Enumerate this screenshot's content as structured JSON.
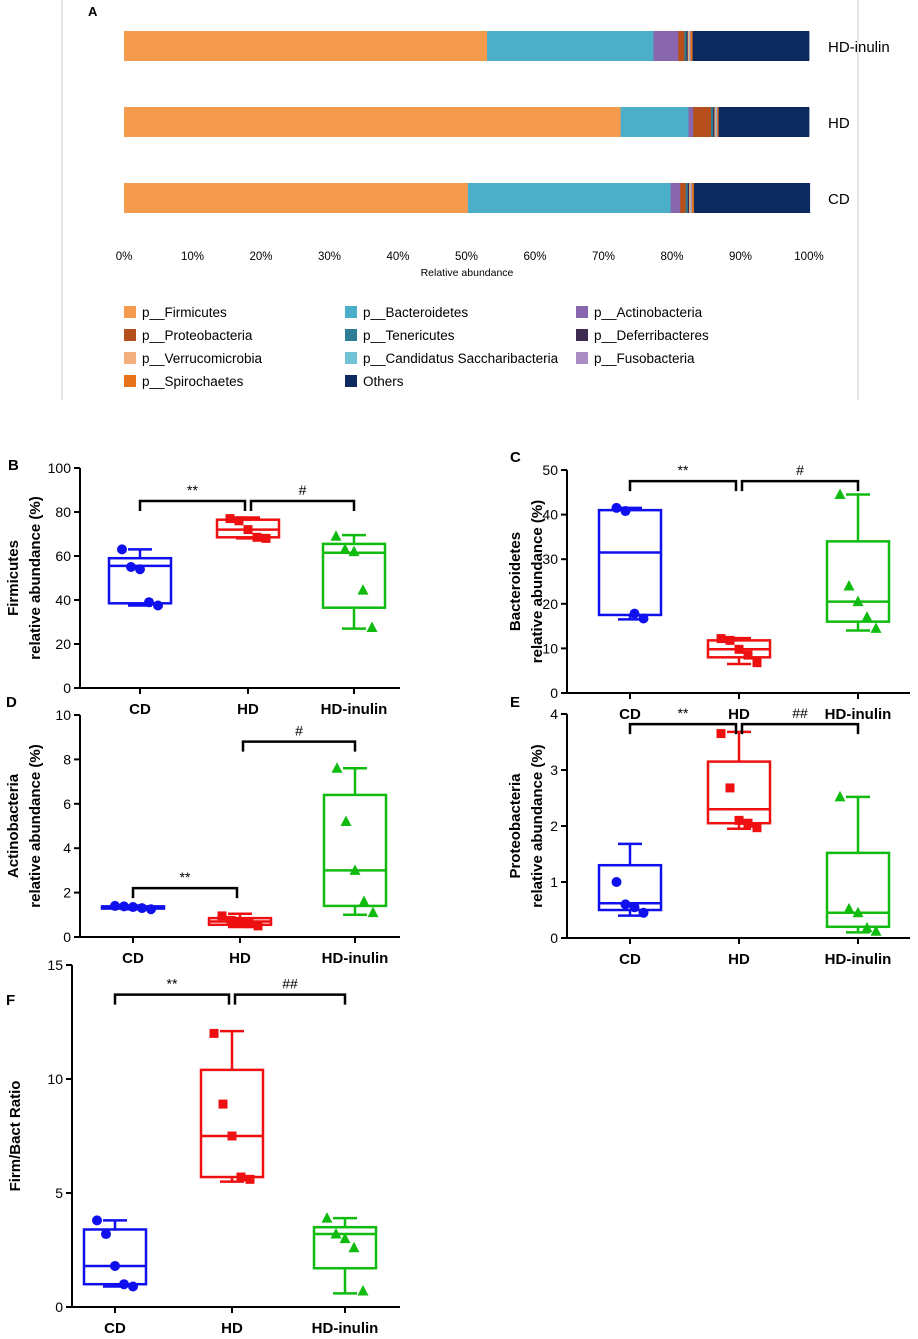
{
  "colors": {
    "CD": "#1010ee",
    "HD": "#ee1010",
    "HD-inulin": "#10bb10",
    "panel_border": "#cccccc"
  },
  "chart_data": [
    {
      "panel": "A",
      "type": "bar",
      "orientation": "horizontal-stacked",
      "xlabel": "Relative abundance",
      "xlim": [
        0,
        100
      ],
      "xticks": [
        "0%",
        "10%",
        "20%",
        "30%",
        "40%",
        "50%",
        "60%",
        "70%",
        "80%",
        "90%",
        "100%"
      ],
      "categories": [
        "HD-inulin",
        "HD",
        "CD"
      ],
      "series": [
        {
          "name": "p__Firmicutes",
          "color": "#f59b4d",
          "values": [
            53.0,
            72.5,
            50.2
          ]
        },
        {
          "name": "p__Bacteroidetes",
          "color": "#4bafc9",
          "values": [
            24.3,
            9.9,
            29.6
          ]
        },
        {
          "name": "p__Actinobacteria",
          "color": "#8766ad",
          "values": [
            3.6,
            0.7,
            1.4
          ]
        },
        {
          "name": "p__Proteobacteria",
          "color": "#b5501c",
          "values": [
            0.9,
            2.6,
            0.8
          ]
        },
        {
          "name": "p__Tenericutes",
          "color": "#2c7e94",
          "values": [
            0.3,
            0.3,
            0.3
          ]
        },
        {
          "name": "p__Deferribacteres",
          "color": "#3d2b54",
          "values": [
            0.2,
            0.2,
            0.2
          ]
        },
        {
          "name": "p__Verrucomicrobia",
          "color": "#f3b07e",
          "values": [
            0.2,
            0.2,
            0.2
          ]
        },
        {
          "name": "p__Candidatus Saccharibacteria",
          "color": "#71c4d6",
          "values": [
            0.1,
            0.1,
            0.1
          ]
        },
        {
          "name": "p__Fusobacteria",
          "color": "#a98dc3",
          "values": [
            0.1,
            0.1,
            0.1
          ]
        },
        {
          "name": "p__Spirochaetes",
          "color": "#e6731c",
          "values": [
            0.3,
            0.2,
            0.3
          ]
        },
        {
          "name": "Others",
          "color": "#0c2a5e",
          "values": [
            17.0,
            13.2,
            16.9
          ]
        }
      ]
    },
    {
      "panel": "B",
      "type": "box",
      "ylabel_line1": "Firmicutes",
      "ylabel_line2": "relative abundance (%)",
      "ylim": [
        0,
        100
      ],
      "yticks": [
        "0",
        "20",
        "40",
        "60",
        "80",
        "100"
      ],
      "categories": [
        "CD",
        "HD",
        "HD-inulin"
      ],
      "groups": [
        {
          "name": "CD",
          "marker": "circle",
          "whisker": [
            37.5,
            63.0
          ],
          "box": [
            38.5,
            59.0
          ],
          "median": 55.5,
          "points": [
            63.0,
            55.0,
            54.0,
            39.0,
            37.5
          ]
        },
        {
          "name": "HD",
          "marker": "square",
          "whisker": [
            68.0,
            77.5
          ],
          "box": [
            68.5,
            76.5
          ],
          "median": 72.0,
          "points": [
            77.0,
            76.0,
            72.0,
            68.5,
            68.0
          ]
        },
        {
          "name": "HD-inulin",
          "marker": "triangle",
          "whisker": [
            27.0,
            69.5
          ],
          "box": [
            36.5,
            65.5
          ],
          "median": 61.5,
          "points": [
            69.0,
            63.0,
            62.0,
            44.5,
            27.5
          ]
        }
      ],
      "annotations": [
        {
          "label": "**",
          "from": 0,
          "to": 1,
          "level": 85
        },
        {
          "label": "#",
          "from": 1,
          "to": 2,
          "level": 85
        }
      ]
    },
    {
      "panel": "C",
      "type": "box",
      "ylabel_line1": "Bacteroidetes",
      "ylabel_line2": "relative abundance (%)",
      "ylim": [
        0,
        50
      ],
      "yticks": [
        "0",
        "10",
        "20",
        "30",
        "40",
        "50"
      ],
      "categories": [
        "CD",
        "HD",
        "HD-inulin"
      ],
      "groups": [
        {
          "name": "CD",
          "marker": "circle",
          "whisker": [
            16.5,
            41.5
          ],
          "box": [
            17.5,
            41.0
          ],
          "median": 31.5,
          "points": [
            41.5,
            40.8,
            17.8,
            16.7
          ]
        },
        {
          "name": "HD",
          "marker": "square",
          "whisker": [
            6.5,
            12.3
          ],
          "box": [
            8.0,
            11.8
          ],
          "median": 9.8,
          "points": [
            12.2,
            11.8,
            9.8,
            8.5,
            6.8
          ]
        },
        {
          "name": "HD-inulin",
          "marker": "triangle",
          "whisker": [
            14.0,
            44.5
          ],
          "box": [
            16.0,
            34.0
          ],
          "median": 20.5,
          "points": [
            44.5,
            24.0,
            20.5,
            17.0,
            14.5
          ]
        }
      ],
      "annotations": [
        {
          "label": "**",
          "from": 0,
          "to": 1,
          "level": 47.5
        },
        {
          "label": "#",
          "from": 1,
          "to": 2,
          "level": 47.5
        }
      ]
    },
    {
      "panel": "D",
      "type": "box",
      "ylabel_line1": "Actinobacteria",
      "ylabel_line2": "relative abundance (%)",
      "ylim": [
        0,
        10
      ],
      "yticks": [
        "0",
        "2",
        "4",
        "6",
        "8",
        "10"
      ],
      "categories": [
        "CD",
        "HD",
        "HD-inulin"
      ],
      "groups": [
        {
          "name": "CD",
          "marker": "circle",
          "whisker": [
            1.25,
            1.42
          ],
          "box": [
            1.28,
            1.38
          ],
          "median": 1.33,
          "points": [
            1.4,
            1.38,
            1.35,
            1.3,
            1.25
          ]
        },
        {
          "name": "HD",
          "marker": "square",
          "whisker": [
            0.45,
            1.05
          ],
          "box": [
            0.55,
            0.85
          ],
          "median": 0.7,
          "points": [
            0.95,
            0.75,
            0.65,
            0.6,
            0.5
          ]
        },
        {
          "name": "HD-inulin",
          "marker": "triangle",
          "whisker": [
            1.0,
            7.6
          ],
          "box": [
            1.4,
            6.4
          ],
          "median": 3.0,
          "points": [
            7.6,
            5.2,
            3.0,
            1.6,
            1.1
          ]
        }
      ],
      "annotations": [
        {
          "label": "**",
          "from": 0,
          "to": 1,
          "level": 2.2
        },
        {
          "label": "#",
          "from": 1,
          "to": 2,
          "level": 8.8
        }
      ]
    },
    {
      "panel": "E",
      "type": "box",
      "ylabel_line1": "Proteobacteria",
      "ylabel_line2": "relative abundance (%)",
      "ylim": [
        0,
        4
      ],
      "yticks": [
        "0",
        "1",
        "2",
        "3",
        "4"
      ],
      "categories": [
        "CD",
        "HD",
        "HD-inulin"
      ],
      "groups": [
        {
          "name": "CD",
          "marker": "circle",
          "whisker": [
            0.4,
            1.68
          ],
          "box": [
            0.5,
            1.3
          ],
          "median": 0.62,
          "points": [
            1.0,
            0.6,
            0.55,
            0.45
          ]
        },
        {
          "name": "HD",
          "marker": "square",
          "whisker": [
            1.95,
            3.68
          ],
          "box": [
            2.05,
            3.15
          ],
          "median": 2.3,
          "points": [
            3.65,
            2.68,
            2.1,
            2.05,
            1.97
          ]
        },
        {
          "name": "HD-inulin",
          "marker": "triangle",
          "whisker": [
            0.1,
            2.52
          ],
          "box": [
            0.2,
            1.52
          ],
          "median": 0.45,
          "points": [
            2.52,
            0.52,
            0.45,
            0.18,
            0.12
          ]
        }
      ],
      "annotations": [
        {
          "label": "**",
          "from": 0,
          "to": 1,
          "level": 3.82
        },
        {
          "label": "##",
          "from": 1,
          "to": 2,
          "level": 3.82
        }
      ]
    },
    {
      "panel": "F",
      "type": "box",
      "ylabel_line1": "Firm/Bact Ratio",
      "ylabel_line2": "",
      "ylim": [
        0,
        15
      ],
      "yticks": [
        "0",
        "5",
        "10",
        "15"
      ],
      "categories": [
        "CD",
        "HD",
        "HD-inulin"
      ],
      "groups": [
        {
          "name": "CD",
          "marker": "circle",
          "whisker": [
            0.9,
            3.8
          ],
          "box": [
            1.0,
            3.4
          ],
          "median": 1.8,
          "points": [
            3.8,
            3.2,
            1.8,
            1.0,
            0.9
          ]
        },
        {
          "name": "HD",
          "marker": "square",
          "whisker": [
            5.5,
            12.1
          ],
          "box": [
            5.7,
            10.4
          ],
          "median": 7.5,
          "points": [
            12.0,
            8.9,
            7.5,
            5.7,
            5.6
          ]
        },
        {
          "name": "HD-inulin",
          "marker": "triangle",
          "whisker": [
            0.6,
            3.9
          ],
          "box": [
            1.7,
            3.5
          ],
          "median": 3.2,
          "points": [
            3.9,
            3.2,
            3.0,
            2.6,
            0.7
          ]
        }
      ],
      "annotations": [
        {
          "label": "**",
          "from": 0,
          "to": 1,
          "level": 13.7
        },
        {
          "label": "##",
          "from": 1,
          "to": 2,
          "level": 13.7
        }
      ]
    }
  ]
}
